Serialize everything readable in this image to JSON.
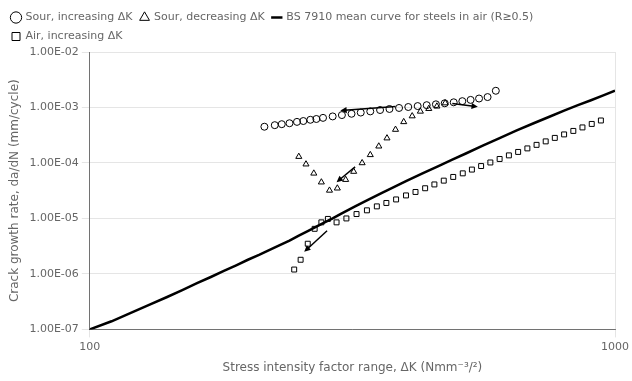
{
  "chart_data": {
    "type": "scatter",
    "xlabel": "Stress intensity factor range, ΔK (Nmm⁻³/²)",
    "ylabel": "Crack growth rate, da/dN (mm/cycle)",
    "log": true,
    "xlim": [
      100,
      1000
    ],
    "ylim": [
      1e-07,
      0.01
    ],
    "xticks": [
      100,
      1000
    ],
    "yticks": [
      {
        "value": 1e-07,
        "label": "1.00E-07"
      },
      {
        "value": 1e-06,
        "label": "1.00E-06"
      },
      {
        "value": 1e-05,
        "label": "1.00E-05"
      },
      {
        "value": 0.0001,
        "label": "1.00E-04"
      },
      {
        "value": 0.001,
        "label": "1.00E-03"
      },
      {
        "value": 0.01,
        "label": "1.00E-02"
      }
    ],
    "grid": true,
    "legend": "upper left",
    "series": [
      {
        "name": "Sour, increasing ΔK",
        "type": "scatter",
        "marker": "circle",
        "color": "#000000",
        "x": [
          215,
          225,
          232,
          240,
          248,
          255,
          263,
          270,
          278,
          290,
          302,
          315,
          328,
          342,
          357,
          372,
          388,
          404,
          421,
          438,
          456,
          474,
          493,
          512,
          531,
          551,
          572,
          593
        ],
        "values": [
          0.00045,
          0.00048,
          0.0005,
          0.00052,
          0.00055,
          0.00057,
          0.0006,
          0.00062,
          0.00065,
          0.00069,
          0.00073,
          0.00077,
          0.00081,
          0.00085,
          0.0009,
          0.00094,
          0.00098,
          0.00102,
          0.00106,
          0.0011,
          0.00114,
          0.00119,
          0.00124,
          0.0013,
          0.00137,
          0.00145,
          0.00154,
          0.002
        ]
      },
      {
        "name": "Sour, decreasing ΔK",
        "type": "scatter",
        "marker": "triangle",
        "color": "#000000",
        "x": [
          250,
          258,
          267,
          276,
          286,
          296,
          307,
          318,
          330,
          342,
          355,
          368,
          382,
          396,
          411,
          426,
          442,
          458,
          475
        ],
        "values": [
          0.00013,
          9.5e-05,
          6.5e-05,
          4.5e-05,
          3.2e-05,
          3.5e-05,
          5e-05,
          7e-05,
          0.0001,
          0.00014,
          0.0002,
          0.00028,
          0.0004,
          0.00055,
          0.0007,
          0.00085,
          0.00095,
          0.00105,
          0.0012
        ]
      },
      {
        "name": "BS 7910 mean curve for steels in air (R≥0.5)",
        "type": "line",
        "line_style": "solid",
        "color": "#000000",
        "x": [
          100,
          110,
          120,
          130,
          140,
          150,
          160,
          170,
          180,
          190,
          200,
          210,
          220,
          230,
          240,
          250,
          260,
          270,
          280,
          290,
          300,
          320,
          340,
          360,
          380,
          400,
          430,
          460,
          490,
          520,
          560,
          600,
          650,
          700,
          750,
          800,
          850,
          900,
          950,
          1000
        ],
        "values": [
          1e-07,
          1.4e-07,
          2e-07,
          2.8e-07,
          3.8e-07,
          5.1e-07,
          6.8e-07,
          8.8e-07,
          1.13e-06,
          1.43e-06,
          1.8e-06,
          2.2e-06,
          2.7e-06,
          3.3e-06,
          4e-06,
          4.9e-06,
          5.9e-06,
          7.1e-06,
          8.5e-06,
          1e-05,
          1.2e-05,
          1.65e-05,
          2.2e-05,
          2.9e-05,
          3.7e-05,
          4.7e-05,
          6.5e-05,
          8.7e-05,
          0.000115,
          0.000148,
          0.000205,
          0.000275,
          0.000385,
          0.00052,
          0.00068,
          0.00088,
          0.0011,
          0.00135,
          0.00165,
          0.002
        ]
      },
      {
        "name": "Air, increasing ΔK",
        "type": "scatter",
        "marker": "square",
        "color": "#000000",
        "x": [
          295,
          308,
          322,
          337,
          352,
          367,
          383,
          400,
          417,
          435,
          453,
          472,
          492,
          513,
          534,
          556,
          579,
          603,
          628,
          654,
          681,
          709,
          738,
          768,
          800,
          833,
          867,
          903,
          940
        ],
        "values": [
          8.5e-06,
          1e-05,
          1.2e-05,
          1.4e-05,
          1.65e-05,
          1.9e-05,
          2.2e-05,
          2.6e-05,
          3e-05,
          3.5e-05,
          4.1e-05,
          4.8e-05,
          5.6e-05,
          6.5e-05,
          7.6e-05,
          8.8e-05,
          0.000102,
          0.000118,
          0.000137,
          0.000158,
          0.000183,
          0.000212,
          0.000245,
          0.000283,
          0.000327,
          0.000378,
          0.000437,
          0.000505,
          0.000583
        ]
      },
      {
        "type": "scatter",
        "marker": "square",
        "color": "#000000",
        "x": [
          245,
          252,
          260,
          268,
          276,
          284
        ],
        "values": [
          1.2e-06,
          1.8e-06,
          3.5e-06,
          6.5e-06,
          8.5e-06,
          9.8e-06
        ]
      }
    ],
    "arrows": [
      {
        "from": {
          "x": 382,
          "y": 0.00104
        },
        "to": {
          "x": 300,
          "y": 0.00088
        }
      },
      {
        "from": {
          "x": 490,
          "y": 0.00118
        },
        "to": {
          "x": 548,
          "y": 0.00103
        }
      },
      {
        "from": {
          "x": 320,
          "y": 8.5e-05
        },
        "to": {
          "x": 295,
          "y": 4.5e-05
        }
      },
      {
        "from": {
          "x": 283,
          "y": 6e-06
        },
        "to": {
          "x": 256,
          "y": 2.5e-06
        }
      }
    ]
  }
}
